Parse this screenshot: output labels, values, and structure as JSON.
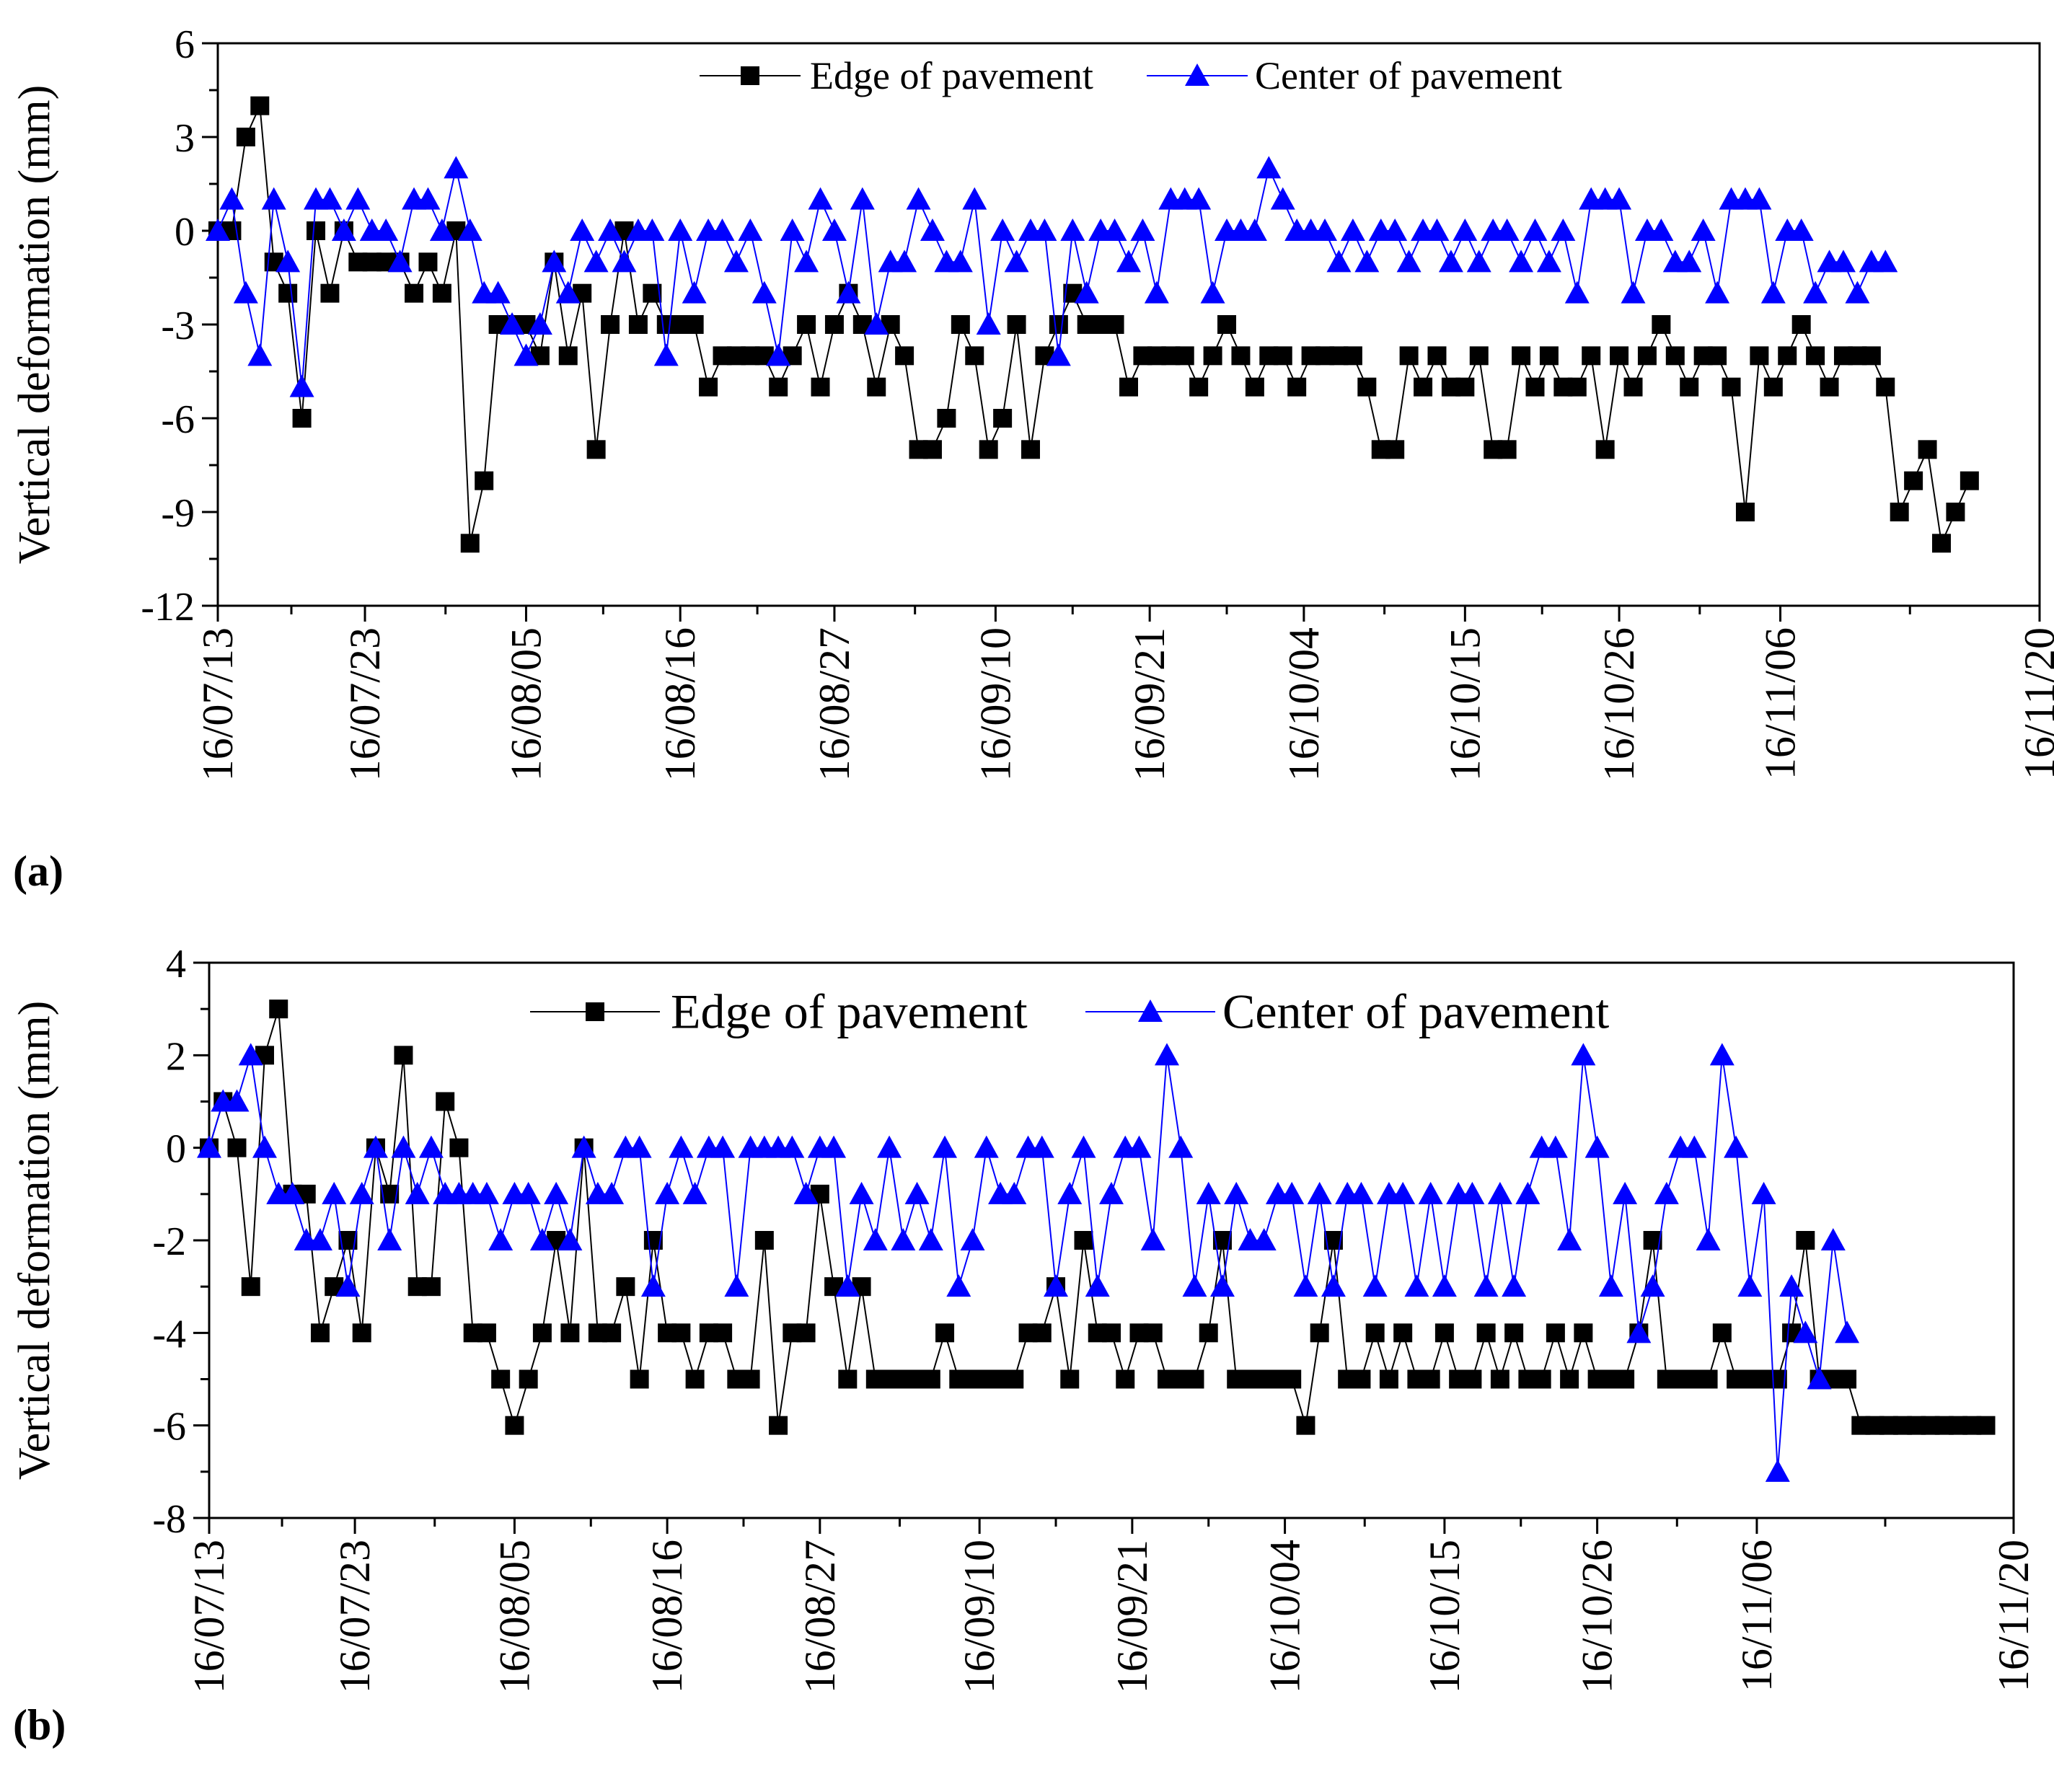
{
  "chart_data": [
    {
      "type": "line",
      "panel_label": "(a)",
      "ylabel": "Vertical deformation (mm)",
      "xlabel": "",
      "ylim": [
        -12,
        6
      ],
      "yticks": [
        6,
        3,
        0,
        -3,
        -6,
        -9,
        -12
      ],
      "x_range": [
        0,
        130
      ],
      "x_tick_positions": [
        0,
        10.5,
        22,
        33,
        44,
        55.5,
        66.5,
        77.5,
        89,
        100,
        111.5,
        130
      ],
      "x_tick_labels": [
        "16/07/13",
        "16/07/23",
        "16/08/05",
        "16/08/16",
        "16/08/27",
        "16/09/10",
        "16/09/21",
        "16/10/04",
        "16/10/15",
        "16/10/26",
        "16/11/06",
        "16/11/20"
      ],
      "legend": [
        "Edge of pavement",
        "Center of pavement"
      ],
      "series": [
        {
          "name": "Edge of pavement",
          "color": "#000000",
          "marker": "square",
          "values": [
            0,
            0,
            3,
            4,
            -1,
            -2,
            -6,
            0,
            -2,
            0,
            -1,
            -1,
            -1,
            -1,
            -2,
            -1,
            -2,
            0,
            -10,
            -8,
            -3,
            -3,
            -3,
            -4,
            -1,
            -4,
            -2,
            -7,
            -3,
            0,
            -3,
            -2,
            -3,
            -3,
            -3,
            -5,
            -4,
            -4,
            -4,
            -4,
            -5,
            -4,
            -3,
            -5,
            -3,
            -2,
            -3,
            -5,
            -3,
            -4,
            -7,
            -7,
            -6,
            -3,
            -4,
            -7,
            -6,
            -3,
            -7,
            -4,
            -3,
            -2,
            -3,
            -3,
            -3,
            -5,
            -4,
            -4,
            -4,
            -4,
            -5,
            -4,
            -3,
            -4,
            -5,
            -4,
            -4,
            -5,
            -4,
            -4,
            -4,
            -4,
            -5,
            -7,
            -7,
            -4,
            -5,
            -4,
            -5,
            -5,
            -4,
            -7,
            -7,
            -4,
            -5,
            -4,
            -5,
            -5,
            -4,
            -7,
            -4,
            -5,
            -4,
            -3,
            -4,
            -5,
            -4,
            -4,
            -5,
            -9,
            -4,
            -5,
            -4,
            -3,
            -4,
            -5,
            -4,
            -4,
            -4,
            -5,
            -9,
            -8,
            -7,
            -10,
            -9,
            -8
          ],
          "x": [
            0,
            1,
            2,
            3,
            4,
            5,
            6,
            7,
            8,
            9,
            10,
            11,
            12,
            13,
            14,
            15,
            16,
            17,
            18,
            19,
            20,
            21,
            22,
            23,
            24,
            25,
            26,
            27,
            28,
            29,
            30,
            31,
            32,
            33,
            34,
            35,
            36,
            37,
            38,
            39,
            40,
            41,
            42,
            43,
            44,
            45,
            46,
            47,
            48,
            49,
            50,
            51,
            52,
            53,
            54,
            55,
            56,
            57,
            58,
            59,
            60,
            61,
            62,
            63,
            64,
            65,
            66,
            67,
            68,
            69,
            70,
            71,
            72,
            73,
            74,
            75,
            76,
            77,
            78,
            79,
            80,
            81,
            82,
            83,
            84,
            85,
            86,
            87,
            88,
            89,
            90,
            91,
            92,
            93,
            94,
            95,
            96,
            97,
            98,
            99,
            100,
            101,
            102,
            103,
            104,
            105,
            106,
            107,
            108,
            109,
            110,
            111,
            112,
            113,
            114,
            115,
            116,
            117,
            118,
            119,
            120,
            121,
            122,
            123,
            124,
            125
          ]
        },
        {
          "name": "Center of pavement",
          "color": "#0000ff",
          "marker": "triangle",
          "values": [
            0,
            1,
            -2,
            -4,
            1,
            -1,
            -5,
            1,
            1,
            0,
            1,
            0,
            0,
            -1,
            1,
            1,
            0,
            2,
            0,
            -2,
            -2,
            -3,
            -4,
            -3,
            -1,
            -2,
            0,
            -1,
            0,
            -1,
            0,
            0,
            -4,
            0,
            -2,
            0,
            0,
            -1,
            0,
            -2,
            -4,
            0,
            -1,
            1,
            0,
            -2,
            1,
            -3,
            -1,
            -1,
            1,
            0,
            -1,
            -1,
            1,
            -3,
            0,
            -1,
            0,
            0,
            -4,
            0,
            -2,
            0,
            0,
            -1,
            0,
            -2,
            1,
            1,
            1,
            -2,
            0,
            0,
            0,
            2,
            1,
            0,
            0,
            0,
            -1,
            0,
            -1,
            0,
            0,
            -1,
            0,
            0,
            -1,
            0,
            -1,
            0,
            0,
            -1,
            0,
            -1,
            0,
            -2,
            1,
            1,
            1,
            -2,
            0,
            0,
            -1,
            -1,
            0,
            -2,
            1,
            1,
            1,
            -2,
            0,
            0,
            -2,
            -1,
            -1,
            -2,
            -1,
            -1
          ],
          "x": [
            0,
            1,
            2,
            3,
            4,
            5,
            6,
            7,
            8,
            9,
            10,
            11,
            12,
            13,
            14,
            15,
            16,
            17,
            18,
            19,
            20,
            21,
            22,
            23,
            24,
            25,
            26,
            27,
            28,
            29,
            30,
            31,
            32,
            33,
            34,
            35,
            36,
            37,
            38,
            39,
            40,
            41,
            42,
            43,
            44,
            45,
            46,
            47,
            48,
            49,
            50,
            51,
            52,
            53,
            54,
            55,
            56,
            57,
            58,
            59,
            60,
            61,
            62,
            63,
            64,
            65,
            66,
            67,
            68,
            69,
            70,
            71,
            72,
            73,
            74,
            75,
            76,
            77,
            78,
            79,
            80,
            81,
            82,
            83,
            84,
            85,
            86,
            87,
            88,
            89,
            90,
            91,
            92,
            93,
            94,
            95,
            96,
            97,
            98,
            99,
            100,
            101,
            102,
            103,
            104,
            105,
            106,
            107,
            108,
            109,
            110,
            111,
            112,
            113,
            114,
            115,
            116,
            117,
            118,
            119
          ]
        }
      ]
    },
    {
      "type": "line",
      "panel_label": "(b)",
      "ylabel": "Vertical deformation (mm)",
      "xlabel": "",
      "ylim": [
        -8,
        4
      ],
      "yticks": [
        4,
        2,
        0,
        -2,
        -4,
        -6,
        -8
      ],
      "x_range": [
        0,
        130
      ],
      "x_tick_positions": [
        0,
        10.5,
        22,
        33,
        44,
        55.5,
        66.5,
        77.5,
        89,
        100,
        111.5,
        130
      ],
      "x_tick_labels": [
        "16/07/13",
        "16/07/23",
        "16/08/05",
        "16/08/16",
        "16/08/27",
        "16/09/10",
        "16/09/21",
        "16/10/04",
        "16/10/15",
        "16/10/26",
        "16/11/06",
        "16/11/20"
      ],
      "legend": [
        "Edge of pavement",
        "Center of pavement"
      ],
      "series": [
        {
          "name": "Edge of pavement",
          "color": "#000000",
          "marker": "square",
          "values": [
            0,
            1,
            0,
            -3,
            2,
            3,
            -1,
            -1,
            -4,
            -3,
            -2,
            -4,
            0,
            -1,
            2,
            -3,
            -3,
            1,
            0,
            -4,
            -4,
            -5,
            -6,
            -5,
            -4,
            -2,
            -4,
            0,
            -4,
            -4,
            -3,
            -5,
            -2,
            -4,
            -4,
            -5,
            -4,
            -4,
            -5,
            -5,
            -2,
            -6,
            -4,
            -4,
            -1,
            -3,
            -5,
            -3,
            -5,
            -5,
            -5,
            -5,
            -5,
            -4,
            -5,
            -5,
            -5,
            -5,
            -5,
            -4,
            -4,
            -3,
            -5,
            -2,
            -4,
            -4,
            -5,
            -4,
            -4,
            -5,
            -5,
            -5,
            -4,
            -2,
            -5,
            -5,
            -5,
            -5,
            -5,
            -6,
            -4,
            -2,
            -5,
            -5,
            -4,
            -5,
            -4,
            -5,
            -5,
            -4,
            -5,
            -5,
            -4,
            -5,
            -4,
            -5,
            -5,
            -4,
            -5,
            -4,
            -5,
            -5,
            -5,
            -4,
            -2,
            -5,
            -5,
            -5,
            -5,
            -4,
            -5,
            -5,
            -5,
            -5,
            -4,
            -2,
            -5,
            -5,
            -5,
            -6,
            -6,
            -6,
            -6,
            -6,
            -6,
            -6,
            -6,
            -6,
            -6
          ],
          "x": [
            0,
            1,
            2,
            3,
            4,
            5,
            6,
            7,
            8,
            9,
            10,
            11,
            12,
            13,
            14,
            15,
            16,
            17,
            18,
            19,
            20,
            21,
            22,
            23,
            24,
            25,
            26,
            27,
            28,
            29,
            30,
            31,
            32,
            33,
            34,
            35,
            36,
            37,
            38,
            39,
            40,
            41,
            42,
            43,
            44,
            45,
            46,
            47,
            48,
            49,
            50,
            51,
            52,
            53,
            54,
            55,
            56,
            57,
            58,
            59,
            60,
            61,
            62,
            63,
            64,
            65,
            66,
            67,
            68,
            69,
            70,
            71,
            72,
            73,
            74,
            75,
            76,
            77,
            78,
            79,
            80,
            81,
            82,
            83,
            84,
            85,
            86,
            87,
            88,
            89,
            90,
            91,
            92,
            93,
            94,
            95,
            96,
            97,
            98,
            99,
            100,
            101,
            102,
            103,
            104,
            105,
            106,
            107,
            108,
            109,
            110,
            111,
            112,
            113,
            114,
            115,
            116,
            117,
            118,
            119,
            120,
            121,
            122,
            123,
            124,
            125,
            126,
            127,
            128
          ]
        },
        {
          "name": "Center of pavement",
          "color": "#0000ff",
          "marker": "triangle",
          "values": [
            0,
            1,
            1,
            2,
            0,
            -1,
            -1,
            -2,
            -2,
            -1,
            -3,
            -1,
            0,
            -2,
            0,
            -1,
            0,
            -1,
            -1,
            -1,
            -1,
            -2,
            -1,
            -1,
            -2,
            -1,
            -2,
            0,
            -1,
            -1,
            0,
            0,
            -3,
            -1,
            0,
            -1,
            0,
            0,
            -3,
            0,
            0,
            0,
            0,
            -1,
            0,
            0,
            -3,
            -1,
            -2,
            0,
            -2,
            -1,
            -2,
            0,
            -3,
            -2,
            0,
            -1,
            -1,
            0,
            0,
            -3,
            -1,
            0,
            -3,
            -1,
            0,
            0,
            -2,
            2,
            0,
            -3,
            -1,
            -3,
            -1,
            -2,
            -2,
            -1,
            -1,
            -3,
            -1,
            -3,
            -1,
            -1,
            -3,
            -1,
            -1,
            -3,
            -1,
            -3,
            -1,
            -1,
            -3,
            -1,
            -3,
            -1,
            0,
            0,
            -2,
            2,
            0,
            -3,
            -1,
            -4,
            -3,
            -1,
            0,
            0,
            -2,
            2,
            0,
            -3,
            -1,
            -7,
            -3,
            -4,
            -5,
            -2,
            -4
          ],
          "x": [
            0,
            1,
            2,
            3,
            4,
            5,
            6,
            7,
            8,
            9,
            10,
            11,
            12,
            13,
            14,
            15,
            16,
            17,
            18,
            19,
            20,
            21,
            22,
            23,
            24,
            25,
            26,
            27,
            28,
            29,
            30,
            31,
            32,
            33,
            34,
            35,
            36,
            37,
            38,
            39,
            40,
            41,
            42,
            43,
            44,
            45,
            46,
            47,
            48,
            49,
            50,
            51,
            52,
            53,
            54,
            55,
            56,
            57,
            58,
            59,
            60,
            61,
            62,
            63,
            64,
            65,
            66,
            67,
            68,
            69,
            70,
            71,
            72,
            73,
            74,
            75,
            76,
            77,
            78,
            79,
            80,
            81,
            82,
            83,
            84,
            85,
            86,
            87,
            88,
            89,
            90,
            91,
            92,
            93,
            94,
            95,
            96,
            97,
            98,
            99,
            100,
            101,
            102,
            103,
            104,
            105,
            106,
            107,
            108,
            109,
            110,
            111,
            112,
            113,
            114,
            115,
            116,
            117,
            118
          ]
        }
      ]
    }
  ]
}
